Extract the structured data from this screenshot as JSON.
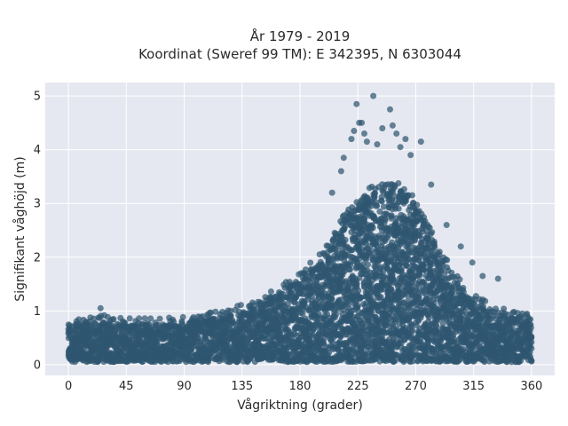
{
  "chart_data": {
    "type": "scatter",
    "title": "År 1979 - 2019",
    "subtitle": "Koordinat (Sweref 99 TM): E 342395, N 6303044",
    "xlabel": "Vågriktning (grader)",
    "ylabel": "Signifikant våghöjd (m)",
    "xlim": [
      -18,
      378
    ],
    "ylim": [
      -0.2,
      5.25
    ],
    "xticks": [
      0,
      45,
      90,
      135,
      180,
      225,
      270,
      315,
      360
    ],
    "yticks": [
      0,
      1,
      2,
      3,
      4,
      5
    ],
    "grid": true,
    "background": "#e5e8f0",
    "marker_color": "#2f5670",
    "envelope": {
      "direction_deg": [
        0,
        10,
        20,
        30,
        45,
        60,
        75,
        90,
        105,
        120,
        135,
        150,
        165,
        180,
        195,
        205,
        215,
        225,
        235,
        245,
        255,
        265,
        275,
        285,
        295,
        305,
        315,
        325,
        335,
        345,
        355,
        360
      ],
      "typical_max_height_m": [
        0.75,
        0.75,
        0.8,
        0.8,
        0.75,
        0.75,
        0.75,
        0.78,
        0.82,
        0.9,
        1.0,
        1.15,
        1.35,
        1.6,
        1.95,
        2.3,
        2.75,
        3.0,
        3.2,
        3.3,
        3.3,
        3.15,
        2.7,
        2.25,
        1.8,
        1.45,
        1.2,
        1.05,
        0.95,
        0.9,
        0.85,
        0.8
      ]
    },
    "outliers": [
      {
        "x": 25,
        "y": 1.05
      },
      {
        "x": 158,
        "y": 1.25
      },
      {
        "x": 205,
        "y": 3.2
      },
      {
        "x": 212,
        "y": 3.6
      },
      {
        "x": 214,
        "y": 3.85
      },
      {
        "x": 220,
        "y": 4.2
      },
      {
        "x": 222,
        "y": 4.35
      },
      {
        "x": 224,
        "y": 4.85
      },
      {
        "x": 226,
        "y": 4.5
      },
      {
        "x": 228,
        "y": 4.5
      },
      {
        "x": 230,
        "y": 4.3
      },
      {
        "x": 232,
        "y": 4.15
      },
      {
        "x": 237,
        "y": 5.0
      },
      {
        "x": 240,
        "y": 4.1
      },
      {
        "x": 244,
        "y": 4.4
      },
      {
        "x": 250,
        "y": 4.75
      },
      {
        "x": 252,
        "y": 4.45
      },
      {
        "x": 255,
        "y": 4.3
      },
      {
        "x": 258,
        "y": 4.05
      },
      {
        "x": 262,
        "y": 4.2
      },
      {
        "x": 266,
        "y": 3.9
      },
      {
        "x": 274,
        "y": 4.15
      },
      {
        "x": 282,
        "y": 3.35
      },
      {
        "x": 294,
        "y": 2.6
      },
      {
        "x": 305,
        "y": 2.2
      },
      {
        "x": 314,
        "y": 1.9
      },
      {
        "x": 322,
        "y": 1.65
      },
      {
        "x": 334,
        "y": 1.6
      },
      {
        "x": 356,
        "y": 0.92
      }
    ]
  }
}
